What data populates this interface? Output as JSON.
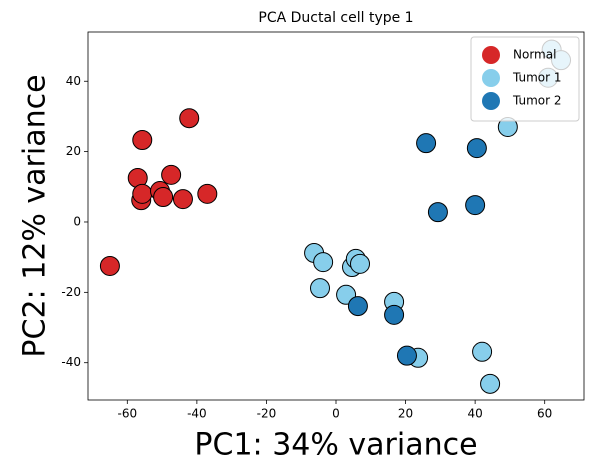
{
  "chart_data": {
    "type": "scatter",
    "title": "PCA Ductal cell type 1",
    "x_label": "PC1: 34% variance",
    "y_label": "PC2: 12% variance",
    "xlim": [
      -71.3,
      71.3
    ],
    "ylim": [
      -50.6,
      54
    ],
    "xticks": [
      -60,
      -40,
      -20,
      0,
      20,
      40,
      60
    ],
    "yticks": [
      -40,
      -20,
      0,
      20,
      40
    ],
    "grid": false,
    "legend": "upper right",
    "series": [
      {
        "name": "Normal",
        "color": "#d62728",
        "x": [
          -65,
          -55.7,
          -57,
          -56,
          -55.7,
          -50.6,
          -49.7,
          -47.4,
          -44,
          -42.2,
          -37
        ],
        "values": [
          -12.5,
          23.3,
          12.5,
          6.2,
          8,
          8.8,
          7.1,
          13.4,
          6.5,
          29.5,
          8
        ]
      },
      {
        "name": "Tumor 1",
        "color": "#87ceeb",
        "x": [
          -6.3,
          -3.7,
          -4.6,
          4.6,
          5.7,
          6.9,
          2.9,
          16.7,
          23.6,
          42,
          44.3,
          49.4,
          62,
          64.7,
          61
        ],
        "values": [
          -8.8,
          -11.4,
          -18.8,
          -12.8,
          -10.5,
          -11.9,
          -20.7,
          -22.7,
          -38.6,
          -36.9,
          -46,
          27,
          49,
          46,
          41
        ]
      },
      {
        "name": "Tumor 2",
        "color": "#1f77b4",
        "x": [
          25.9,
          40.5,
          29.3,
          40,
          6.3,
          16.7,
          20.4
        ],
        "values": [
          22.4,
          21,
          2.8,
          4.8,
          -23.9,
          -26.4,
          -38
        ]
      }
    ]
  }
}
